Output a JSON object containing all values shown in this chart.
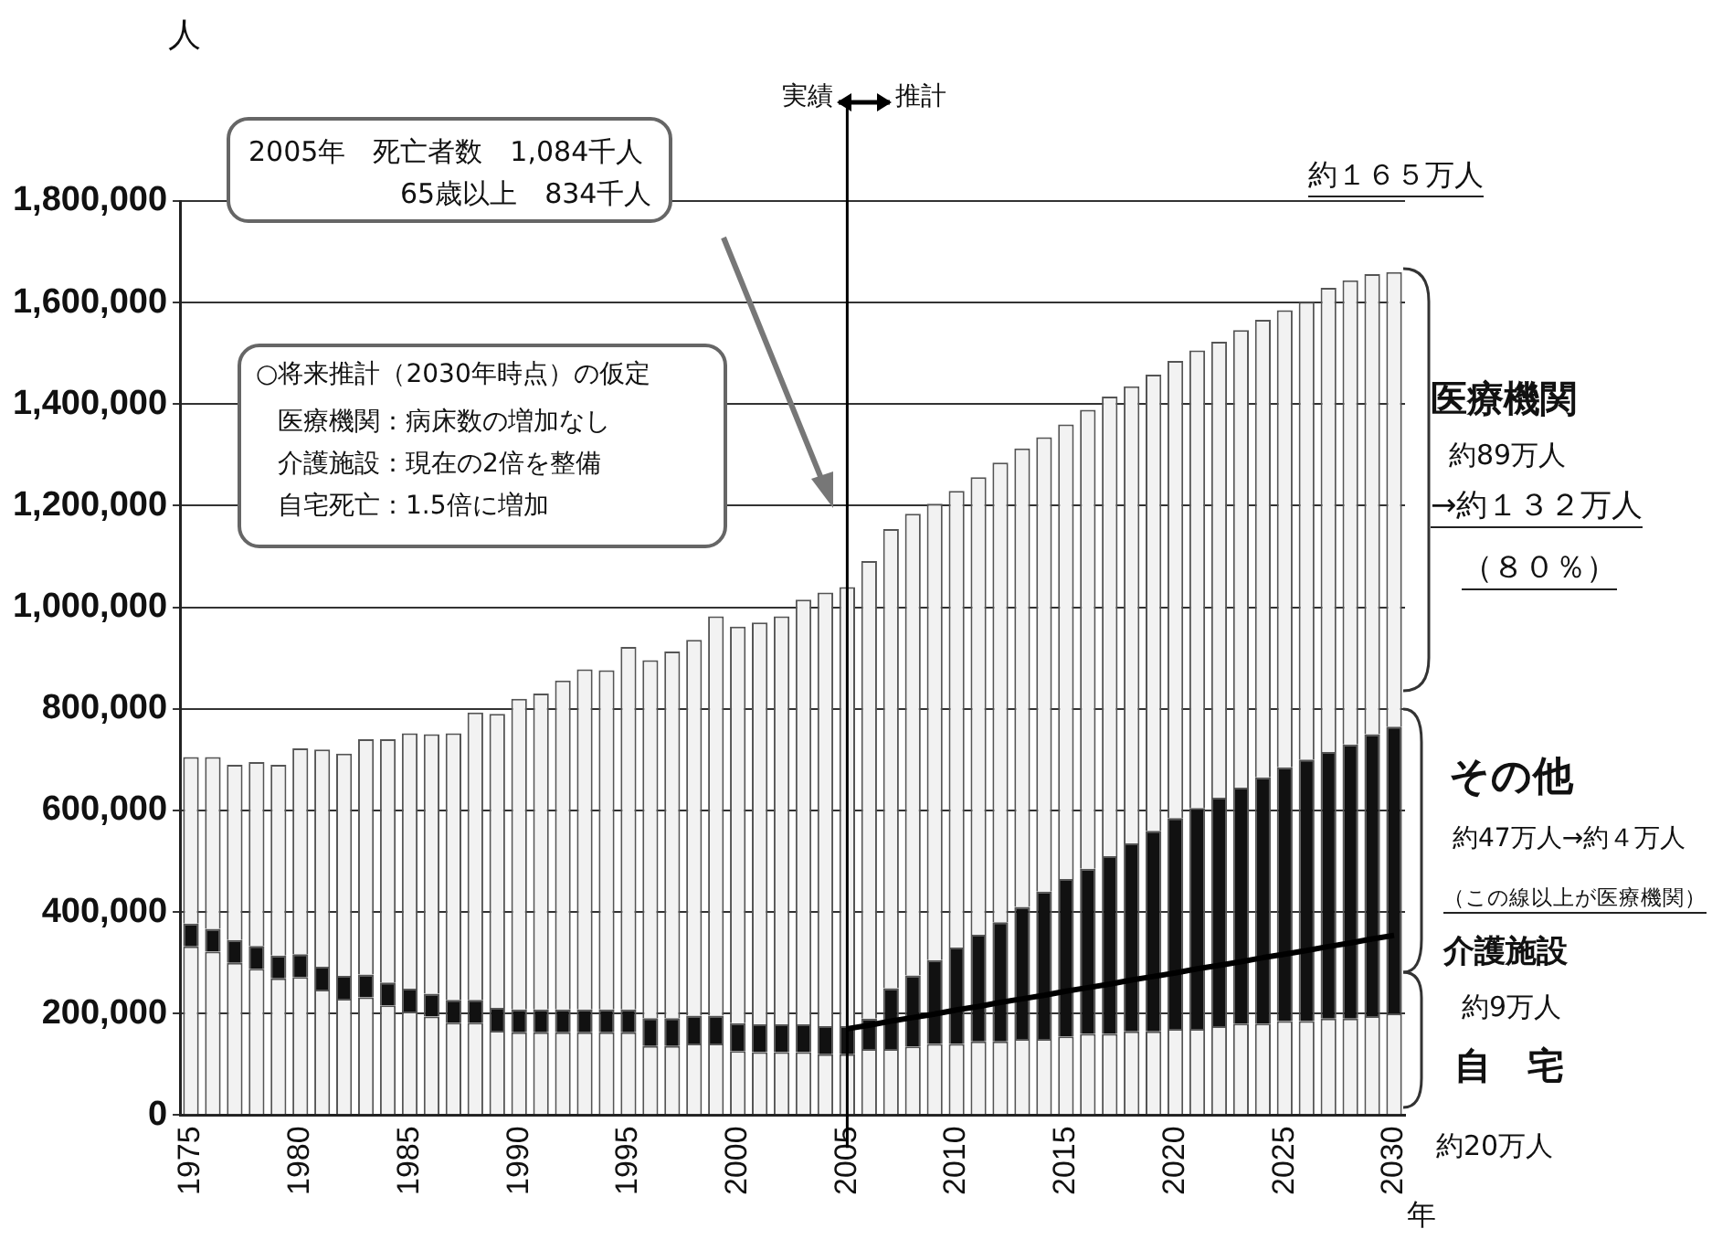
{
  "chart_data": {
    "type": "bar",
    "stacked": true,
    "xlabel": "年",
    "ylabel": "人",
    "categories": [
      "1975",
      null,
      null,
      null,
      null,
      "1980",
      null,
      null,
      null,
      null,
      "1985",
      null,
      null,
      null,
      null,
      "1990",
      null,
      null,
      null,
      null,
      "1995",
      null,
      null,
      null,
      null,
      "2000",
      null,
      null,
      null,
      null,
      "2005",
      null,
      null,
      null,
      null,
      "2010",
      null,
      null,
      null,
      null,
      "2015",
      null,
      null,
      null,
      null,
      "2020",
      null,
      null,
      null,
      null,
      "2025",
      null,
      null,
      null,
      null,
      "2030"
    ],
    "series": [
      {
        "color": "#f2f2f2",
        "values": [
          332000,
          322000,
          300000,
          288000,
          269000,
          272000,
          247000,
          229000,
          232000,
          216000,
          204000,
          194000,
          182000,
          182000,
          166000,
          163000,
          163000,
          163000,
          163000,
          163000,
          163000,
          136000,
          136000,
          141000,
          141000,
          126000,
          124000,
          124000,
          124000,
          120000,
          120000,
          130000,
          130000,
          135000,
          140000,
          140000,
          145000,
          145000,
          150000,
          150000,
          155000,
          160000,
          160000,
          165000,
          165000,
          170000,
          170000,
          175000,
          180000,
          180000,
          185000,
          185000,
          190000,
          190000,
          195000,
          200000
        ]
      },
      {
        "color": "#111111",
        "values": [
          45000,
          45000,
          45000,
          45000,
          45000,
          45000,
          45000,
          45000,
          45000,
          45000,
          45000,
          45000,
          45000,
          45000,
          45000,
          45000,
          45000,
          45000,
          45000,
          45000,
          45000,
          55000,
          55000,
          55000,
          55000,
          55000,
          55000,
          55000,
          55000,
          55000,
          55000,
          60000,
          120000,
          140000,
          165000,
          190000,
          210000,
          235000,
          260000,
          290000,
          310000,
          325000,
          350000,
          370000,
          395000,
          415000,
          435000,
          450000,
          465000,
          485000,
          500000,
          515000,
          525000,
          540000,
          555000,
          565000
        ]
      },
      {
        "color": "#f2f2f2",
        "values": [
          328000,
          338000,
          345000,
          362000,
          376000,
          405000,
          428000,
          438000,
          463000,
          479000,
          503000,
          511000,
          525000,
          566000,
          579000,
          612000,
          622000,
          648000,
          670000,
          668000,
          714000,
          705000,
          722000,
          740000,
          786000,
          781000,
          791000,
          803000,
          836000,
          854000,
          865000,
          901000,
          904000,
          909000,
          899000,
          899000,
          901000,
          905000,
          903000,
          895000,
          895000,
          904000,
          905000,
          900000,
          898000,
          900000,
          901000,
          898000,
          901000,
          901000,
          900000,
          901000,
          914000,
          914000,
          906000,
          895000
        ]
      },
      {
        "type": "line",
        "color": "#000000",
        "marker": "none",
        "values": [
          null,
          null,
          null,
          null,
          null,
          null,
          null,
          null,
          null,
          null,
          null,
          null,
          null,
          null,
          null,
          null,
          null,
          null,
          null,
          null,
          null,
          null,
          null,
          null,
          null,
          null,
          null,
          null,
          null,
          null,
          170000,
          177000,
          185000,
          192000,
          199000,
          207000,
          214000,
          222000,
          229000,
          236000,
          244000,
          251000,
          258000,
          266000,
          273000,
          280000,
          288000,
          295000,
          302000,
          310000,
          317000,
          324000,
          332000,
          339000,
          347000,
          354000
        ]
      }
    ],
    "ylim": [
      0,
      1800000
    ],
    "yticks": [
      {
        "value": 0,
        "label": "0"
      },
      {
        "value": 200000,
        "label": "200,000"
      },
      {
        "value": 400000,
        "label": "400,000"
      },
      {
        "value": 600000,
        "label": "600,000"
      },
      {
        "value": 800000,
        "label": "800,000"
      },
      {
        "value": 1000000,
        "label": "1,000,000"
      },
      {
        "value": 1200000,
        "label": "1,200,000"
      },
      {
        "value": 1400000,
        "label": "1,400,000"
      },
      {
        "value": 1600000,
        "label": "1,600,000"
      },
      {
        "value": 1800000,
        "label": "1,800,000"
      }
    ],
    "grid": "y",
    "legend": false,
    "ref_lines": [
      {
        "axis": "x",
        "value": "2005",
        "color": "#000000"
      }
    ],
    "annotations": [
      "実績",
      "推計",
      "2005年　死亡者数　1,084千人",
      "65歳以上　834千人",
      "○将来推計（2030年時点）の仮定",
      "医療機関：病床数の増加なし",
      "介護施設：現在の2倍を整備",
      "自宅死亡：1.5倍に増加",
      "約１６５万人",
      "医療機関",
      "約89万人",
      "→約１３２万人",
      "（８０％）",
      "その他",
      "約47万人→約４万人",
      "（この線以上が医療機関）",
      "介護施設",
      "約9万人",
      "自　宅",
      "約20万人"
    ]
  }
}
